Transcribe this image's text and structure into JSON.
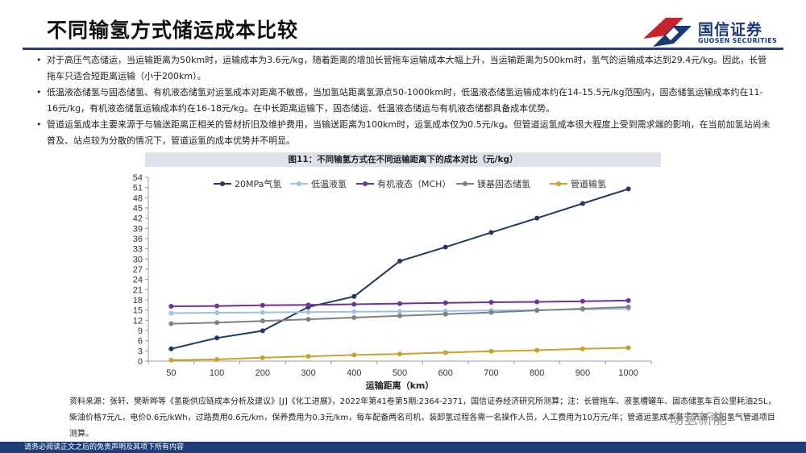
{
  "page": {
    "title": "不同输氢方式储运成本比较",
    "logo_cn": "国信证券",
    "logo_en": "GUOSEN SECURITIES",
    "bullets": [
      "对于高压气态储运，当运输距离为50km时，运输成本为3.6元/kg，随着距离的增加长管拖车运输成本大幅上升，当运输距离为500km时，氢气的运输成本达到29.4元/kg。因此，长管拖车只适合短距离运输（小于200km）。",
      "低温液态储氢与固态储氢、有机液态储氢对运氢成本对距离不敏感，当加氢站距离氢源点50-1000km时，低温液态储氢运输成本约在14-15.5元/kg范围内，固态储氢运输成本约在11-16元/kg，有机液态储氢运输成本约在16-18元/kg。在中长距离运输下，固态储运、低温液态储运与有机液态储都具备成本优势。",
      "管道运氢成本主要来源于与输送距离正相关的管材折旧及维护费用，当输送距离为100km时，运氢成本仅为0.5元/kg。但管道运氢成本很大程度上受到需求端的影响，在当前加氢站尚未普及、站点较为分散的情况下，管道运氢的成本优势并不明显。"
    ],
    "figure_caption": "图11：不同输氢方式在不同运输距离下的成本对比（元/kg）",
    "source": "资料来源：张轩、樊昕晔等《氢能供应链成本分析及建议》[J]《化工进展》，2022年第41卷第5期:2364-2371，国信证券经济研究所测算；注：长管拖车、液氢槽罐车、固态储氢车百公里耗油25L，柴油价格7元/L，电价0.6元/kWh，过路费用0.6元/km，保养费用为0.3元/km，每车配备两名司机，装卸氢过程各需一名操作人员，人工费用为10万元/年；管道运氢成本基于济源-洛阳氢气管道项目测算。",
    "watermark": "动氢新能",
    "footer": "请务必阅读正文之后的免责声明及其项下所有内容"
  },
  "colors": {
    "brand_navy": "#1f3f7a",
    "brand_red": "#c8232c",
    "caption_bg": "#dde2ea"
  },
  "chart_data": {
    "type": "line",
    "xlabel": "运输距离（km）",
    "ylabel": "",
    "x": [
      50,
      100,
      200,
      300,
      400,
      500,
      600,
      700,
      800,
      900,
      1000
    ],
    "ylim": [
      0,
      54
    ],
    "yticks": [
      0,
      3,
      6,
      9,
      12,
      15,
      18,
      21,
      24,
      27,
      30,
      33,
      36,
      39,
      42,
      45,
      48,
      51,
      54
    ],
    "grid": false,
    "legend_position": "top",
    "series": [
      {
        "name": "20MPa气氢",
        "color": "#1f3a5f",
        "values": [
          3.6,
          6.8,
          8.9,
          15.9,
          19.0,
          29.4,
          33.5,
          37.8,
          42.0,
          46.3,
          50.6
        ]
      },
      {
        "name": "低温液氢",
        "color": "#9cc3e6",
        "values": [
          14.1,
          14.2,
          14.3,
          14.4,
          14.5,
          14.6,
          14.7,
          14.9,
          15.0,
          15.2,
          15.4
        ]
      },
      {
        "name": "有机液态（MCH）",
        "color": "#7030a0",
        "values": [
          16.1,
          16.2,
          16.4,
          16.5,
          16.7,
          16.9,
          17.1,
          17.3,
          17.4,
          17.6,
          17.8
        ]
      },
      {
        "name": "镁基固态储氢",
        "color": "#808080",
        "values": [
          11.0,
          11.3,
          11.8,
          12.3,
          12.8,
          13.3,
          13.8,
          14.3,
          14.9,
          15.4,
          15.9
        ]
      },
      {
        "name": "管道输氢",
        "color": "#c9a227",
        "values": [
          0.3,
          0.5,
          1.0,
          1.4,
          1.8,
          2.1,
          2.5,
          2.9,
          3.2,
          3.6,
          3.9
        ]
      }
    ]
  }
}
